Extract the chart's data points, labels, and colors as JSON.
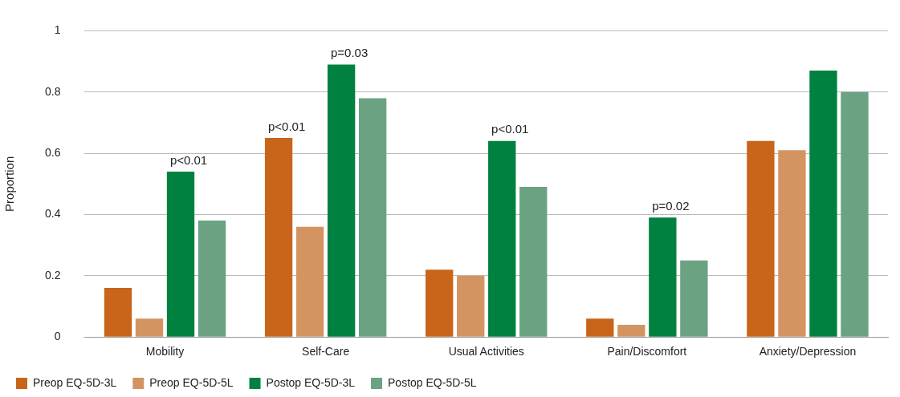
{
  "chart_data": {
    "type": "bar",
    "ylabel": "Proportion",
    "categories": [
      "Mobility",
      "Self-Care",
      "Usual Activities",
      "Pain/Discomfort",
      "Anxiety/Depression"
    ],
    "series": [
      {
        "name": "Preop EQ-5D-3L",
        "color": "#c8651b",
        "values": [
          0.16,
          0.65,
          0.22,
          0.06,
          0.64
        ]
      },
      {
        "name": "Preop EQ-5D-5L",
        "color": "#d49461",
        "values": [
          0.06,
          0.36,
          0.2,
          0.04,
          0.61
        ]
      },
      {
        "name": "Postop EQ-5D-3L",
        "color": "#00813f",
        "values": [
          0.54,
          0.89,
          0.64,
          0.39,
          0.87
        ]
      },
      {
        "name": "Postop EQ-5D-5L",
        "color": "#6aa282",
        "values": [
          0.38,
          0.78,
          0.49,
          0.25,
          0.8
        ]
      }
    ],
    "ylim": [
      0,
      1
    ],
    "yticks": [
      0,
      0.2,
      0.4,
      0.6,
      0.8,
      1
    ],
    "grid": "y",
    "legend": "bottom",
    "annotations": [
      {
        "text": "p<0.01",
        "x": "Mobility",
        "y": 0.54
      },
      {
        "text": "p<0.01",
        "x": "Self-Care",
        "y": 0.65
      },
      {
        "text": "p=0.03",
        "x": "Self-Care",
        "y": 0.89
      },
      {
        "text": "p<0.01",
        "x": "Usual Activities",
        "y": 0.64
      },
      {
        "text": "p=0.02",
        "x": "Pain/Discomfort",
        "y": 0.39
      }
    ]
  }
}
